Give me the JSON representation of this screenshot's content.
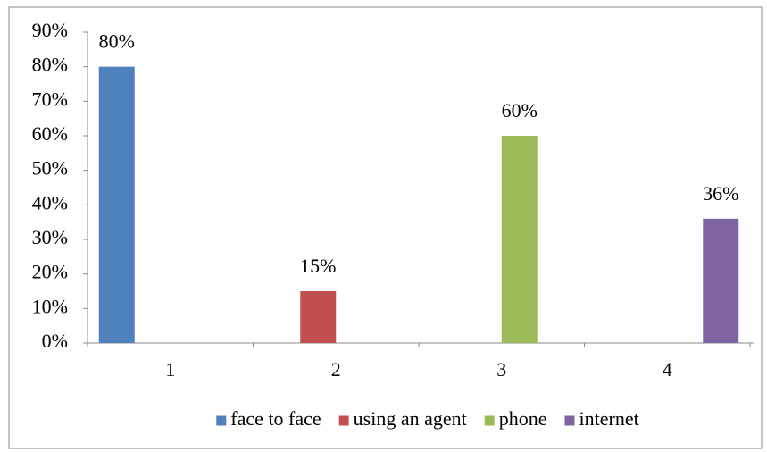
{
  "chart_data": {
    "type": "bar",
    "categories": [
      "1",
      "2",
      "3",
      "4"
    ],
    "series": [
      {
        "name": "face to face",
        "color": "#4f81bd",
        "values": [
          80,
          null,
          null,
          null
        ],
        "value_labels": [
          "80%",
          null,
          null,
          null
        ]
      },
      {
        "name": "using an agent",
        "color": "#c0504d",
        "values": [
          null,
          15,
          null,
          null
        ],
        "value_labels": [
          null,
          "15%",
          null,
          null
        ]
      },
      {
        "name": "phone",
        "color": "#9bbb59",
        "values": [
          null,
          null,
          60,
          null
        ],
        "value_labels": [
          null,
          null,
          "60%",
          null
        ]
      },
      {
        "name": "internet",
        "color": "#8064a2",
        "values": [
          null,
          null,
          null,
          36
        ],
        "value_labels": [
          null,
          null,
          null,
          "36%"
        ]
      }
    ],
    "ylim": [
      0,
      90
    ],
    "yticks": [
      {
        "value": 0,
        "label": "0%"
      },
      {
        "value": 10,
        "label": "10%"
      },
      {
        "value": 20,
        "label": "20%"
      },
      {
        "value": 30,
        "label": "30%"
      },
      {
        "value": 40,
        "label": "40%"
      },
      {
        "value": 50,
        "label": "50%"
      },
      {
        "value": 60,
        "label": "60%"
      },
      {
        "value": 70,
        "label": "70%"
      },
      {
        "value": 80,
        "label": "80%"
      },
      {
        "value": 90,
        "label": "90%"
      }
    ],
    "legend": "bottom"
  }
}
